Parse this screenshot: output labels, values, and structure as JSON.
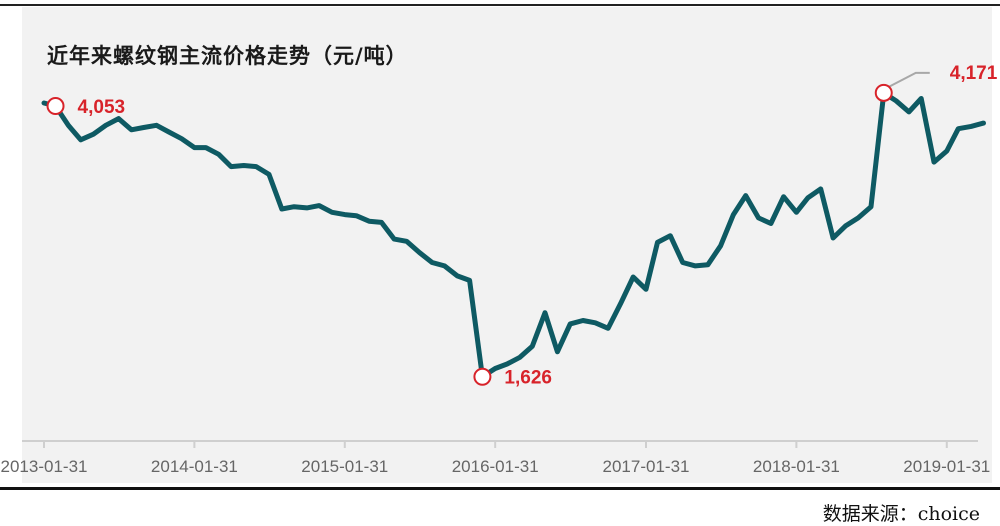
{
  "title": "近年来螺纹钢主流价格走势（元/吨）",
  "source": "数据来源：choice",
  "colors": {
    "line": "#0e5a63",
    "annotation": "#d8232a",
    "panel": "#f2f2f2",
    "axis": "#cfcfcf",
    "tick_label": "#666666"
  },
  "chart_data": {
    "type": "line",
    "title": "近年来螺纹钢主流价格走势（元/吨）",
    "xlabel": "",
    "ylabel": "",
    "xlim": [
      "2013-01-31",
      "2019-04-30"
    ],
    "ylim": [
      1050,
      4600
    ],
    "grid": false,
    "x_ticks": [
      "2013-01-31",
      "2014-01-31",
      "2015-01-31",
      "2016-01-31",
      "2017-01-31",
      "2018-01-31",
      "2019-01-31"
    ],
    "x_tick_labels": [
      "2013-01-31",
      "2014-01-31",
      "2015-01-31",
      "2016-01-31",
      "2017-01-31",
      "2018-01-31",
      "2019-01-31"
    ],
    "series": [
      {
        "x": [
          "2013-01-31",
          "2013-02-28",
          "2013-03-31",
          "2013-04-30",
          "2013-05-31",
          "2013-06-30",
          "2013-07-31",
          "2013-08-31",
          "2013-09-30",
          "2013-10-31",
          "2013-11-30",
          "2013-12-31",
          "2014-01-31",
          "2014-02-28",
          "2014-03-31",
          "2014-04-30",
          "2014-05-31",
          "2014-06-30",
          "2014-07-31",
          "2014-08-31",
          "2014-09-30",
          "2014-10-31",
          "2014-11-30",
          "2014-12-31",
          "2015-01-31",
          "2015-02-28",
          "2015-03-31",
          "2015-04-30",
          "2015-05-31",
          "2015-06-30",
          "2015-07-31",
          "2015-08-31",
          "2015-09-30",
          "2015-10-31",
          "2015-11-30",
          "2015-12-31",
          "2016-01-31",
          "2016-02-29",
          "2016-03-31",
          "2016-04-30",
          "2016-05-31",
          "2016-06-30",
          "2016-07-31",
          "2016-08-31",
          "2016-09-30",
          "2016-10-31",
          "2016-11-30",
          "2016-12-31",
          "2017-01-31",
          "2017-02-28",
          "2017-03-31",
          "2017-04-30",
          "2017-05-31",
          "2017-06-30",
          "2017-07-31",
          "2017-08-31",
          "2017-09-30",
          "2017-10-31",
          "2017-11-30",
          "2017-12-31",
          "2018-01-31",
          "2018-02-28",
          "2018-03-31",
          "2018-04-30",
          "2018-05-31",
          "2018-06-30",
          "2018-07-31",
          "2018-08-31",
          "2018-09-30",
          "2018-10-31",
          "2018-11-30",
          "2018-12-31",
          "2019-01-31",
          "2019-02-28",
          "2019-03-31",
          "2019-04-30"
        ],
        "values": [
          4080,
          4053,
          3880,
          3750,
          3800,
          3880,
          3940,
          3840,
          3860,
          3880,
          3820,
          3760,
          3680,
          3680,
          3620,
          3510,
          3520,
          3510,
          3440,
          3130,
          3150,
          3140,
          3160,
          3100,
          3080,
          3070,
          3020,
          3010,
          2860,
          2840,
          2740,
          2650,
          2620,
          2530,
          2490,
          1626,
          1700,
          1740,
          1800,
          1900,
          2200,
          1850,
          2100,
          2130,
          2110,
          2060,
          2280,
          2520,
          2410,
          2830,
          2890,
          2650,
          2620,
          2630,
          2800,
          3080,
          3250,
          3050,
          3000,
          3240,
          3100,
          3230,
          3310,
          2870,
          2980,
          3050,
          3150,
          4171,
          4100,
          4000,
          4120,
          3550,
          3650,
          3850,
          3870,
          3900
        ]
      }
    ],
    "annotations": [
      {
        "x": "2013-02-28",
        "value": 4053,
        "label": "4,053"
      },
      {
        "x": "2015-12-31",
        "value": 1626,
        "label": "1,626"
      },
      {
        "x": "2018-08-31",
        "value": 4171,
        "label": "4,171"
      }
    ]
  }
}
